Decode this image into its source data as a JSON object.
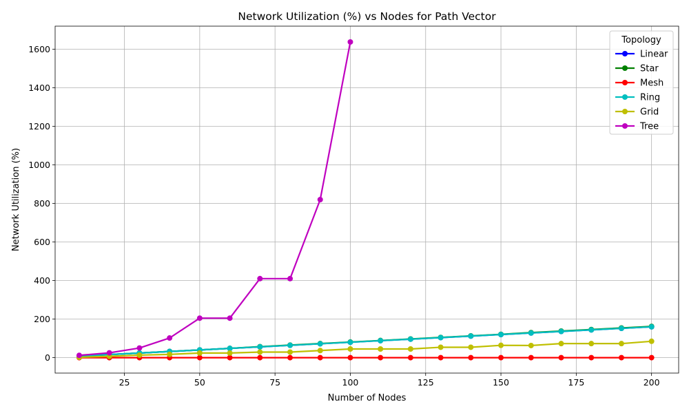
{
  "chart_data": {
    "type": "line",
    "title": "Network Utilization (%) vs Nodes for Path Vector",
    "xlabel": "Number of Nodes",
    "ylabel": "Network Utilization (%)",
    "xlim": [
      2,
      209
    ],
    "ylim": [
      -80,
      1720
    ],
    "xticks": [
      25,
      50,
      75,
      100,
      125,
      150,
      175,
      200
    ],
    "yticks": [
      0,
      200,
      400,
      600,
      800,
      1000,
      1200,
      1400,
      1600
    ],
    "grid": true,
    "legend": {
      "title": "Topology",
      "position": "top-right"
    },
    "x": [
      10,
      20,
      30,
      40,
      50,
      60,
      70,
      80,
      90,
      100,
      110,
      120,
      130,
      140,
      150,
      160,
      170,
      180,
      190,
      200
    ],
    "series": [
      {
        "name": "Linear",
        "color": "#0000ff",
        "values": [
          8,
          16,
          24,
          32,
          40,
          48,
          56,
          64,
          72,
          80,
          88,
          96,
          104,
          112,
          120,
          128,
          136,
          144,
          152,
          160
        ]
      },
      {
        "name": "Star",
        "color": "#008000",
        "values": [
          8,
          16,
          24,
          32,
          40,
          48,
          57,
          65,
          73,
          81,
          89,
          97,
          105,
          113,
          121,
          130,
          138,
          146,
          154,
          162
        ]
      },
      {
        "name": "Mesh",
        "color": "#ff0000",
        "values": [
          0,
          0,
          0,
          0,
          0,
          0,
          0,
          0,
          0,
          0,
          0,
          0,
          0,
          0,
          0,
          0,
          0,
          0,
          0,
          0
        ]
      },
      {
        "name": "Ring",
        "color": "#00bfbf",
        "values": [
          8,
          16,
          24,
          32,
          40,
          48,
          56,
          64,
          72,
          80,
          88,
          96,
          104,
          112,
          120,
          128,
          136,
          144,
          152,
          160
        ]
      },
      {
        "name": "Grid",
        "color": "#bfbf00",
        "values": [
          2,
          7,
          13,
          17,
          24,
          24,
          29,
          29,
          37,
          45,
          45,
          45,
          54,
          54,
          64,
          63,
          73,
          73,
          73,
          85
        ]
      },
      {
        "name": "Tree",
        "color": "#bf00bf",
        "values": [
          12,
          25,
          50,
          102,
          205,
          205,
          410,
          410,
          820,
          1638,
          null,
          null,
          null,
          null,
          null,
          null,
          null,
          null,
          null,
          null
        ]
      }
    ]
  }
}
